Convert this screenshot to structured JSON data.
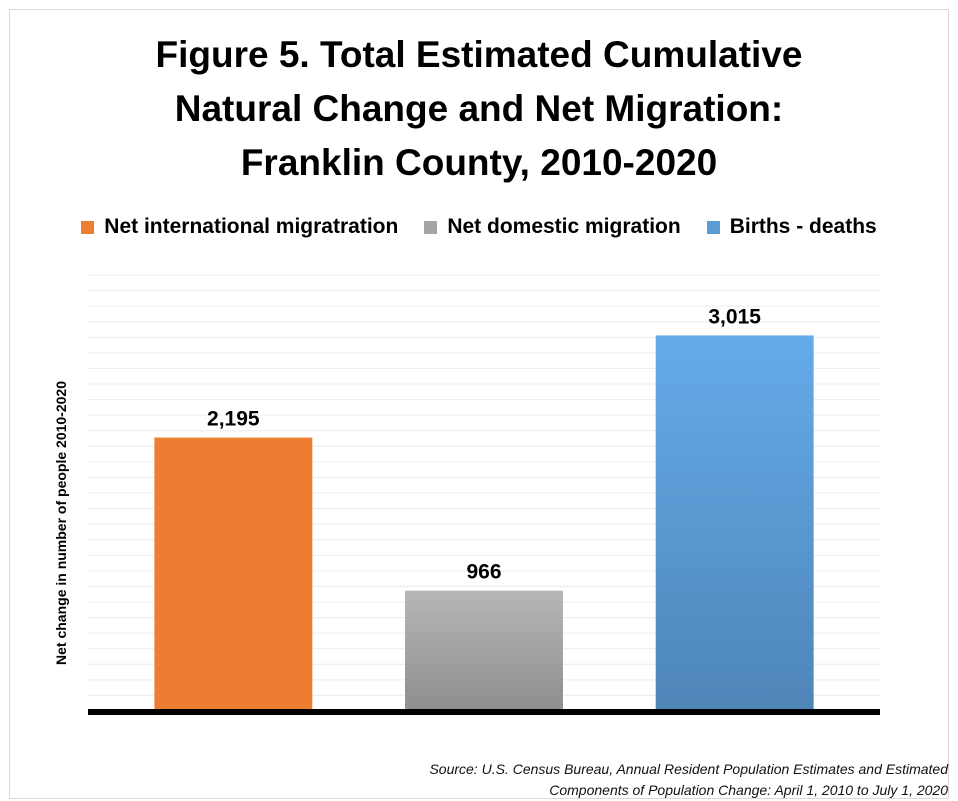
{
  "chart_data": {
    "type": "bar",
    "title_lines": [
      "Figure 5. Total Estimated Cumulative",
      "Natural Change and Net Migration:",
      "Franklin County, 2010-2020"
    ],
    "categories": [
      "Net international migratration",
      "Net domestic migration",
      "Births  - deaths"
    ],
    "values": [
      2195,
      966,
      3015
    ],
    "data_labels": [
      "2,195",
      "966",
      "3,015"
    ],
    "colors": [
      "#ED7D31",
      "#A5A5A5",
      "#5B9BD5"
    ],
    "ylabel": "Net change in number of people 2010-2020",
    "ylim": [
      0,
      3500
    ],
    "legend_position": "top",
    "grid": true,
    "legend": [
      {
        "label": "Net international migratration",
        "color": "#ED7D31"
      },
      {
        "label": "Net domestic migration",
        "color": "#A5A5A5"
      },
      {
        "label": "Births  - deaths",
        "color": "#5B9BD5"
      }
    ]
  },
  "source": {
    "line1": "Source: U.S. Census Bureau, Annual Resident Population Estimates and Estimated",
    "line2": "Components of Population Change: April 1, 2010 to July 1, 2020"
  }
}
